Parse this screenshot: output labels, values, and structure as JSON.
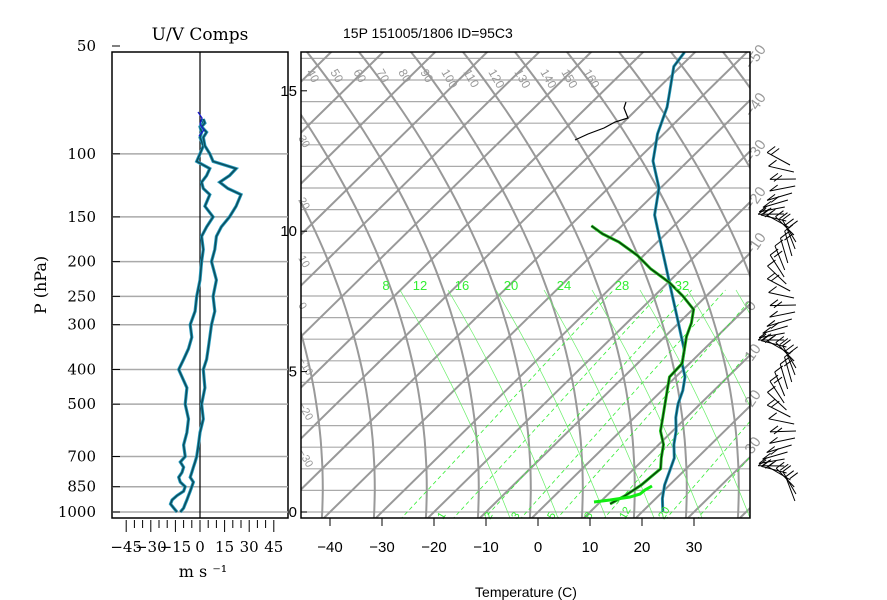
{
  "chart_data": [
    {
      "type": "line",
      "title": "U/V Comps",
      "ylabel": "P (hPa)",
      "xlabel": "m s ⁻¹",
      "y_ticks": [
        50,
        100,
        150,
        200,
        250,
        300,
        400,
        500,
        700,
        850,
        1000
      ],
      "x_ticks": [
        -45,
        -30,
        -15,
        0,
        15,
        30,
        45
      ],
      "x_tick_labels": [
        "−45",
        "−30",
        "−15",
        "0",
        "15",
        "30",
        "45"
      ],
      "xlim": [
        -50,
        50
      ],
      "ylim": [
        1000,
        50
      ],
      "y_scale": "log",
      "grid": true,
      "series": [
        {
          "component": "left",
          "color": "#0a4f5f",
          "pressure": [
            1000,
            975,
            950,
            925,
            900,
            875,
            850,
            825,
            800,
            775,
            750,
            725,
            700,
            650,
            600,
            550,
            500,
            450,
            400,
            375,
            350,
            325,
            300,
            275,
            250,
            225,
            200,
            185,
            170,
            160,
            150,
            140,
            130,
            125,
            120,
            115,
            110,
            105,
            100,
            95,
            90,
            87,
            84,
            82,
            80
          ],
          "values": [
            -14,
            -16,
            -18,
            -17,
            -14,
            -10,
            -9,
            -12,
            -13,
            -11,
            -10,
            -12,
            -9,
            -10,
            -8,
            -7,
            -9,
            -8,
            -13,
            -10,
            -7,
            -5,
            -6,
            -3,
            -2,
            0,
            1,
            2,
            1,
            4,
            8,
            3,
            6,
            2,
            1,
            4,
            6,
            -2,
            0,
            2,
            0,
            1,
            0,
            2,
            1
          ]
        },
        {
          "component": "right",
          "color": "#0a4f5f",
          "pressure": [
            1000,
            975,
            950,
            925,
            900,
            875,
            850,
            825,
            800,
            775,
            750,
            725,
            700,
            650,
            600,
            550,
            500,
            450,
            400,
            375,
            350,
            325,
            300,
            275,
            250,
            225,
            200,
            185,
            170,
            160,
            150,
            140,
            130,
            125,
            120,
            115,
            110,
            105,
            100,
            95,
            90,
            87,
            84,
            82,
            80
          ],
          "values": [
            -12,
            -10,
            -9,
            -8,
            -7,
            -6,
            -5,
            -4,
            -6,
            -5,
            -4,
            -3,
            -2,
            -1,
            0,
            2,
            1,
            3,
            2,
            4,
            5,
            6,
            7,
            9,
            8,
            10,
            7,
            9,
            10,
            13,
            18,
            22,
            25,
            17,
            12,
            18,
            22,
            8,
            6,
            3,
            2,
            4,
            1,
            3,
            2
          ]
        }
      ]
    },
    {
      "type": "line",
      "title": "15P 151005/1806 ID=95C3",
      "xlabel": "Temperature (C)",
      "x_ticks": [
        -40,
        -30,
        -20,
        -10,
        0,
        10,
        20,
        30
      ],
      "x_tick_labels": [
        "−40",
        "−30",
        "−20",
        "−10",
        "0",
        "10",
        "20",
        "30"
      ],
      "xlim": [
        -42,
        42
      ],
      "y_ticks": [
        0,
        5,
        10,
        15
      ],
      "y_tick_labels": [
        "0",
        "5",
        "10",
        "15"
      ],
      "ylabel": "",
      "grid": true,
      "background": {
        "isotherm_labels": [
          "−50",
          "−40",
          "−30",
          "−20",
          "−10",
          "0",
          "10",
          "20",
          "30"
        ],
        "dry_adiabat_labels": [
          "40",
          "50",
          "60",
          "70",
          "80",
          "90",
          "100",
          "110",
          "120",
          "130",
          "140",
          "150",
          "160"
        ],
        "left_edge_labels": [
          "30",
          "20",
          "10",
          "0",
          "−10",
          "−20",
          "−30"
        ],
        "mixing_ratio_labels_top": [
          "8",
          "12",
          "16",
          "20",
          "24",
          "28",
          "32"
        ],
        "mixing_ratio_labels_bottom": [
          "1",
          "2",
          "3",
          "5",
          "8",
          "12",
          "20"
        ],
        "colors": {
          "grid": "#999999",
          "mixing_ratio": "#33ee33"
        }
      },
      "series": [
        {
          "name": "",
          "color": "#0a4f5f",
          "height_km": [
            0,
            0.5,
            1.0,
            1.5,
            2.0,
            2.5,
            3.0,
            3.5,
            4.0,
            4.5,
            5.0,
            5.5,
            6.0,
            6.5,
            7.0,
            7.5,
            8.0,
            8.5,
            9.0,
            9.5,
            10.0,
            10.5,
            11.0,
            11.5,
            12.0,
            12.5,
            13.0,
            13.5,
            14.0,
            14.5,
            15.0,
            15.5,
            16.0,
            16.5,
            17.0,
            17.5,
            18.0,
            18.5,
            19.0
          ],
          "temperature_c": [
            24,
            22.5,
            21.5,
            21,
            20.5,
            19,
            18,
            16.5,
            15.5,
            15,
            14,
            12,
            11,
            9,
            7,
            5,
            3,
            1,
            -1,
            -3,
            -5,
            -7,
            -9,
            -10,
            -11,
            -13,
            -15,
            -16,
            -17,
            -17.5,
            -18,
            -19,
            -20,
            -21,
            -20.5,
            -21,
            -21.5,
            -20,
            -18
          ]
        },
        {
          "name": "",
          "color": "#0a4f5f",
          "height_km": [
            0.3,
            0.6,
            1.0,
            1.3,
            1.6,
            2.0,
            2.5,
            3.0,
            3.5,
            4.0,
            4.5,
            5.0,
            5.5,
            6.0,
            6.5,
            7.0,
            7.5,
            8.0,
            8.5,
            9.0,
            9.5,
            10.0,
            10.3,
            10.6
          ],
          "temperature_c": [
            13,
            15,
            17,
            18,
            19,
            18,
            17,
            15,
            14,
            13,
            12,
            11,
            12,
            11,
            10,
            9.5,
            8.5,
            5,
            1,
            -4,
            -8,
            -13,
            -17,
            -20
          ]
        }
      ]
    }
  ]
}
